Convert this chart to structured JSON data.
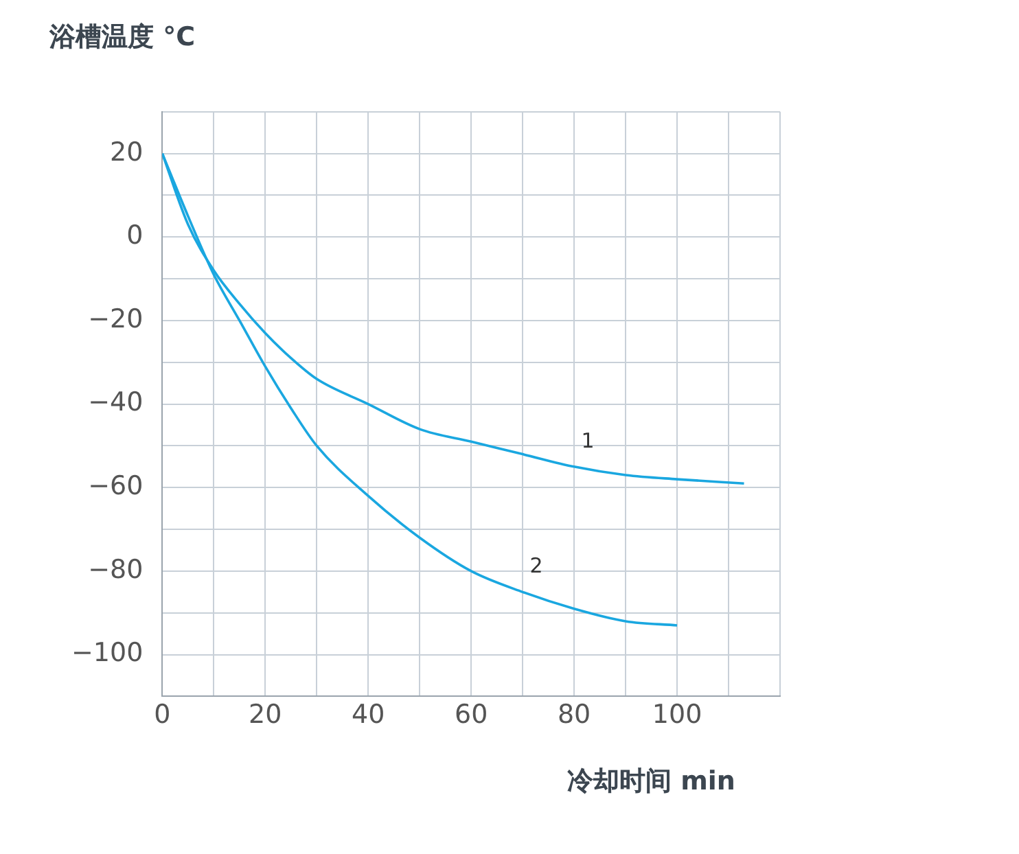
{
  "chart_data": {
    "type": "line",
    "title": "浴槽温度 °C",
    "xlabel": "冷却时间 min",
    "xlim": [
      0,
      120
    ],
    "xticks": [
      0,
      {
        "value": 10,
        "label": null
      },
      20,
      {
        "value": 30,
        "label": null
      },
      40,
      {
        "value": 50,
        "label": null
      },
      60,
      {
        "value": 70,
        "label": null
      },
      80,
      {
        "value": 90,
        "label": null
      },
      100,
      {
        "value": 110,
        "label": null
      },
      {
        "value": 120,
        "label": null
      }
    ],
    "ylim": [
      -110,
      30
    ],
    "yticks": [
      {
        "value": -110,
        "label": null
      },
      -100,
      {
        "value": -90,
        "label": null
      },
      -80,
      {
        "value": -70,
        "label": null
      },
      -60,
      {
        "value": -50,
        "label": null
      },
      -40,
      {
        "value": -30,
        "label": null
      },
      -20,
      {
        "value": -10,
        "label": null
      },
      0,
      {
        "value": 10,
        "label": null
      },
      20,
      {
        "value": 30,
        "label": null
      }
    ],
    "grid": true,
    "legend": false,
    "marker": "none",
    "line_style": "solid",
    "series": [
      {
        "name": "1",
        "color": "#1aa7e0",
        "x": [
          0,
          5,
          10,
          15,
          20,
          25,
          30,
          40,
          50,
          60,
          70,
          80,
          90,
          100,
          113
        ],
        "values": [
          20,
          3,
          -8,
          -16,
          -23,
          -29,
          -34,
          -40,
          -46,
          -49,
          -52,
          -55,
          -57,
          -58,
          -59
        ]
      },
      {
        "name": "2",
        "color": "#1aa7e0",
        "x": [
          0,
          5,
          10,
          15,
          20,
          25,
          30,
          40,
          50,
          60,
          70,
          80,
          90,
          100
        ],
        "values": [
          20,
          5,
          -9,
          -20,
          -31,
          -41,
          -50,
          -62,
          -72,
          -80,
          -85,
          -89,
          -92,
          -93
        ]
      }
    ]
  }
}
